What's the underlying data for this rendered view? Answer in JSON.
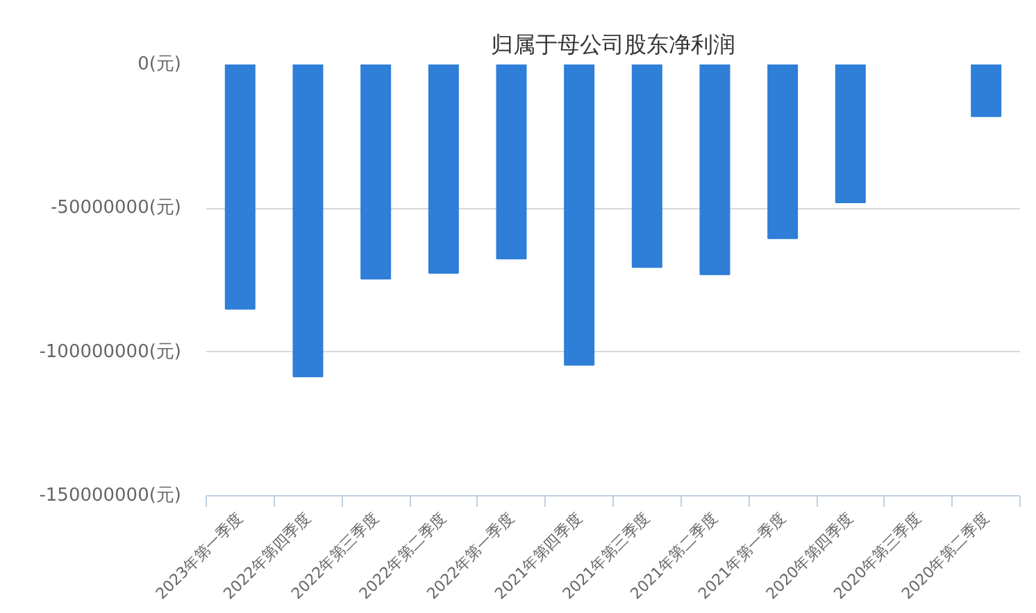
{
  "chart_data": {
    "type": "bar",
    "title": "归属于母公司股东净利润",
    "categories": [
      "2023年第一季度",
      "2022年第四季度",
      "2022年第三季度",
      "2022年第二季度",
      "2022年第一季度",
      "2021年第四季度",
      "2021年第三季度",
      "2021年第二季度",
      "2021年第一季度",
      "2020年第四季度",
      "2020年第三季度",
      "2020年第二季度"
    ],
    "values": [
      -85000000,
      -108500000,
      -74500000,
      -72500000,
      -67500000,
      -104500000,
      -70500000,
      -73000000,
      -60500000,
      -48000000,
      null,
      -18000000
    ],
    "color": "#2f7ed8",
    "ylim": [
      -150000000,
      0
    ],
    "yticks": [
      {
        "value": 0,
        "label": "0(元)"
      },
      {
        "value": -50000000,
        "label": "-50000000(元)"
      },
      {
        "value": -100000000,
        "label": "-100000000(元)"
      },
      {
        "value": -150000000,
        "label": "-150000000(元)"
      }
    ],
    "grid": "y"
  }
}
